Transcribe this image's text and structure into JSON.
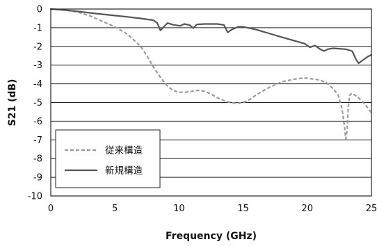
{
  "chart_data": {
    "type": "line",
    "title": "",
    "xlabel": "Frequency (GHz)",
    "ylabel": "S21 (dB)",
    "xlim": [
      0,
      25
    ],
    "ylim": [
      -10,
      0
    ],
    "xticks": [
      0,
      5,
      10,
      15,
      20,
      25
    ],
    "yticks": [
      0,
      -1,
      -2,
      -3,
      -4,
      -5,
      -6,
      -7,
      -8,
      -9,
      -10
    ],
    "grid": "horizontal",
    "legend_position": "bottom-left",
    "series": [
      {
        "name": "従来構造",
        "style": "dashed",
        "color": "#9a9a9a",
        "points": [
          [
            0,
            0
          ],
          [
            1,
            -0.05
          ],
          [
            2,
            -0.15
          ],
          [
            3,
            -0.35
          ],
          [
            4,
            -0.65
          ],
          [
            5,
            -0.95
          ],
          [
            6,
            -1.35
          ],
          [
            7,
            -2.0
          ],
          [
            7.5,
            -2.5
          ],
          [
            8,
            -3.1
          ],
          [
            8.5,
            -3.6
          ],
          [
            9,
            -4.05
          ],
          [
            9.5,
            -4.35
          ],
          [
            10,
            -4.45
          ],
          [
            10.5,
            -4.45
          ],
          [
            11,
            -4.4
          ],
          [
            11.5,
            -4.35
          ],
          [
            12,
            -4.4
          ],
          [
            12.5,
            -4.55
          ],
          [
            13,
            -4.75
          ],
          [
            13.5,
            -4.9
          ],
          [
            14,
            -5.0
          ],
          [
            14.5,
            -5.05
          ],
          [
            15,
            -5.0
          ],
          [
            15.5,
            -4.85
          ],
          [
            16,
            -4.6
          ],
          [
            17,
            -4.2
          ],
          [
            18,
            -3.9
          ],
          [
            19,
            -3.75
          ],
          [
            19.5,
            -3.7
          ],
          [
            20,
            -3.7
          ],
          [
            21,
            -3.8
          ],
          [
            21.5,
            -3.95
          ],
          [
            22,
            -4.25
          ],
          [
            22.4,
            -4.6
          ],
          [
            22.7,
            -5.3
          ],
          [
            22.9,
            -6.3
          ],
          [
            23.0,
            -6.95
          ],
          [
            23.1,
            -6.5
          ],
          [
            23.2,
            -5.2
          ],
          [
            23.3,
            -4.6
          ],
          [
            23.5,
            -4.5
          ],
          [
            24,
            -4.75
          ],
          [
            24.5,
            -5.1
          ],
          [
            25,
            -5.55
          ]
        ]
      },
      {
        "name": "新規構造",
        "style": "solid",
        "color": "#555555",
        "points": [
          [
            0,
            0
          ],
          [
            1,
            -0.05
          ],
          [
            2,
            -0.12
          ],
          [
            3,
            -0.2
          ],
          [
            4,
            -0.28
          ],
          [
            5,
            -0.35
          ],
          [
            6,
            -0.42
          ],
          [
            7,
            -0.5
          ],
          [
            8,
            -0.6
          ],
          [
            8.3,
            -0.75
          ],
          [
            8.55,
            -1.15
          ],
          [
            8.8,
            -0.95
          ],
          [
            9.1,
            -0.75
          ],
          [
            9.6,
            -0.85
          ],
          [
            10.1,
            -0.9
          ],
          [
            10.4,
            -0.8
          ],
          [
            10.8,
            -0.85
          ],
          [
            11.1,
            -1.02
          ],
          [
            11.4,
            -0.82
          ],
          [
            12,
            -0.8
          ],
          [
            13,
            -0.8
          ],
          [
            13.5,
            -0.85
          ],
          [
            13.8,
            -1.25
          ],
          [
            14.1,
            -1.1
          ],
          [
            14.6,
            -0.95
          ],
          [
            15,
            -0.95
          ],
          [
            16,
            -1.1
          ],
          [
            17,
            -1.3
          ],
          [
            18,
            -1.5
          ],
          [
            19,
            -1.7
          ],
          [
            19.8,
            -1.85
          ],
          [
            20.2,
            -2.05
          ],
          [
            20.6,
            -1.95
          ],
          [
            21.0,
            -2.15
          ],
          [
            21.3,
            -2.25
          ],
          [
            21.6,
            -2.15
          ],
          [
            22,
            -2.1
          ],
          [
            23,
            -2.15
          ],
          [
            23.5,
            -2.25
          ],
          [
            23.8,
            -2.7
          ],
          [
            24.0,
            -2.9
          ],
          [
            24.3,
            -2.75
          ],
          [
            24.7,
            -2.55
          ],
          [
            25,
            -2.45
          ]
        ]
      }
    ]
  }
}
